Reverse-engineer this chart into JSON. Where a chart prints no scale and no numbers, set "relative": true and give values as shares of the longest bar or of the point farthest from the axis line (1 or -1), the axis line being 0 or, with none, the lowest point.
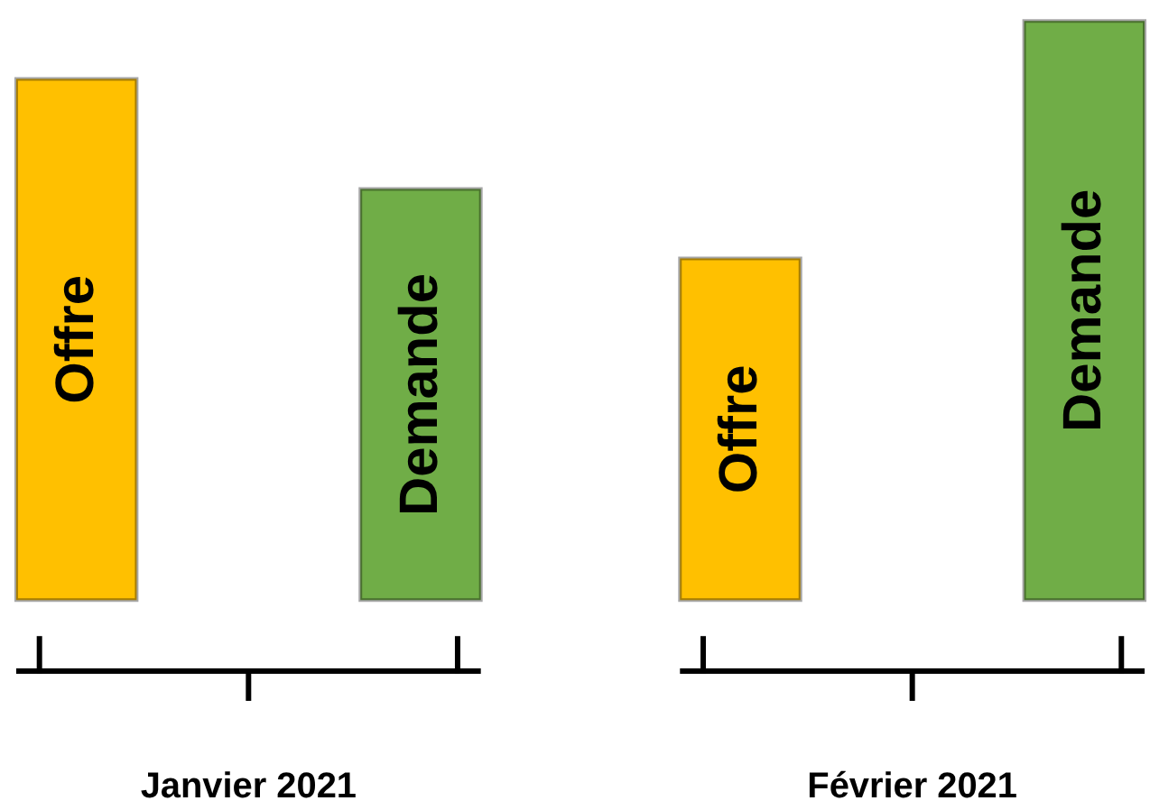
{
  "chart_data": {
    "type": "bar",
    "relative": true,
    "categories": [
      "Janvier 2021",
      "Février 2021"
    ],
    "series": [
      {
        "name": "Offre",
        "color": "#ffc000",
        "values": [
          0.9,
          0.59
        ]
      },
      {
        "name": "Demande",
        "color": "#70ad47",
        "values": [
          0.71,
          1
        ]
      }
    ],
    "grid": false
  }
}
